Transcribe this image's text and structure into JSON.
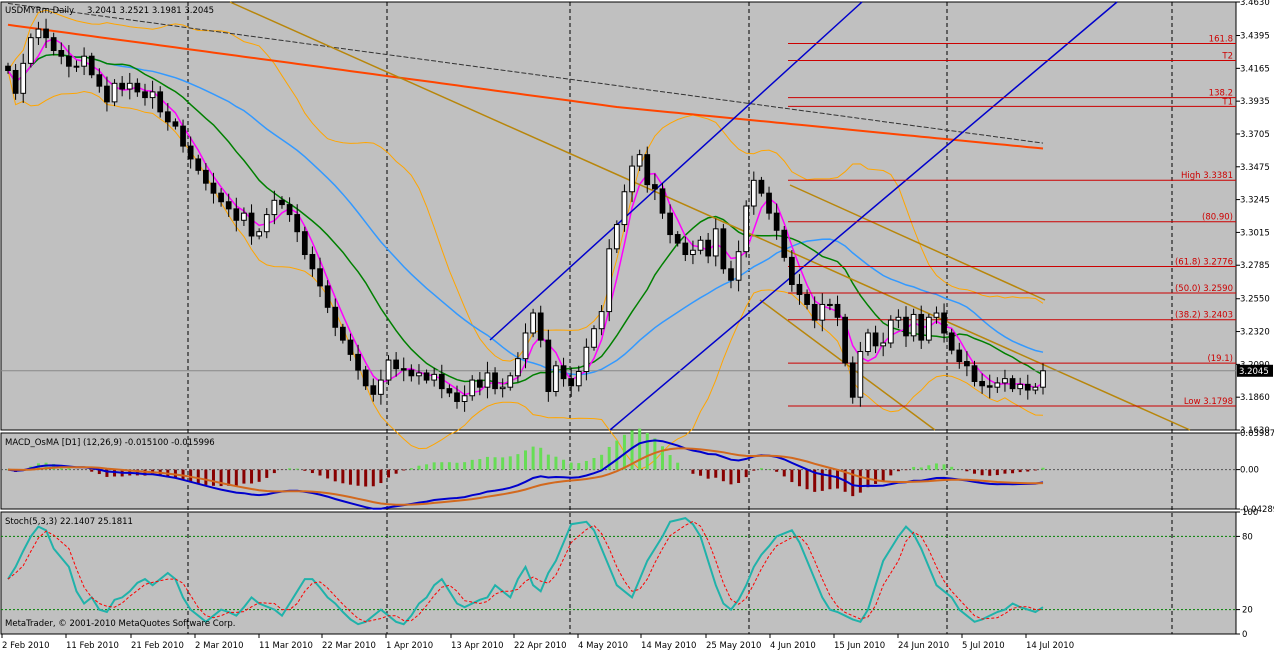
{
  "chart_data": {
    "type": "candlestick",
    "symbol_header": "USDMYRm,Daily",
    "ohlc_header": "3.2041 3.2521 3.1981 3.2045",
    "last_price_label": "3.2045",
    "main_y_ticks": [
      "3.4630",
      "3.4395",
      "3.4165",
      "3.3935",
      "3.3705",
      "3.3475",
      "3.3245",
      "3.3015",
      "3.2785",
      "3.2550",
      "3.2320",
      "3.2090",
      "3.1860",
      "3.1630"
    ],
    "ylim": [
      3.163,
      3.463
    ],
    "x_labels": [
      "2 Feb 2010",
      "11 Feb 2010",
      "21 Feb 2010",
      "2 Mar 2010",
      "11 Mar 2010",
      "22 Mar 2010",
      "1 Apr 2010",
      "13 Apr 2010",
      "22 Apr 2010",
      "4 May 2010",
      "14 May 2010",
      "25 May 2010",
      "4 Jun 2010",
      "15 Jun 2010",
      "24 Jun 2010",
      "5 Jul 2010",
      "14 Jul 2010"
    ],
    "fib_levels": [
      {
        "label": "161.8",
        "price": 3.4339
      },
      {
        "label": "T2",
        "price": 3.422
      },
      {
        "label": "138.2",
        "price": 3.396
      },
      {
        "label": "T1",
        "price": 3.3898
      },
      {
        "label": "High  3.3381",
        "price": 3.3381
      },
      {
        "label": "(80.90)",
        "price": 3.309
      },
      {
        "label": "(61.8) 3.2776",
        "price": 3.2776
      },
      {
        "label": "(50.0)  3.2590",
        "price": 3.259
      },
      {
        "label": "(38.2) 3.2403",
        "price": 3.2403
      },
      {
        "label": "(19.1)",
        "price": 3.2099
      },
      {
        "label": "Low  3.1798",
        "price": 3.1798
      }
    ],
    "closes": [
      3.415,
      3.399,
      3.42,
      3.438,
      3.444,
      3.438,
      3.429,
      3.425,
      3.418,
      3.418,
      3.425,
      3.412,
      3.404,
      3.393,
      3.406,
      3.402,
      3.406,
      3.4,
      3.396,
      3.4,
      3.386,
      3.379,
      3.376,
      3.362,
      3.353,
      3.345,
      3.336,
      3.329,
      3.323,
      3.318,
      3.31,
      3.315,
      3.299,
      3.302,
      3.314,
      3.324,
      3.321,
      3.314,
      3.302,
      3.286,
      3.276,
      3.264,
      3.249,
      3.235,
      3.226,
      3.216,
      3.205,
      3.194,
      3.188,
      3.198,
      3.212,
      3.206,
      3.205,
      3.201,
      3.203,
      3.198,
      3.202,
      3.192,
      3.189,
      3.183,
      3.187,
      3.198,
      3.193,
      3.203,
      3.192,
      3.193,
      3.201,
      3.213,
      3.231,
      3.245,
      3.226,
      3.19,
      3.208,
      3.199,
      3.194,
      3.204,
      3.221,
      3.234,
      3.246,
      3.29,
      3.307,
      3.33,
      3.348,
      3.356,
      3.335,
      3.332,
      3.315,
      3.3,
      3.294,
      3.286,
      3.289,
      3.296,
      3.285,
      3.304,
      3.276,
      3.268,
      3.288,
      3.32,
      3.338,
      3.329,
      3.315,
      3.303,
      3.284,
      3.265,
      3.258,
      3.251,
      3.24,
      3.251,
      3.251,
      3.242,
      3.21,
      3.186,
      3.218,
      3.231,
      3.222,
      3.224,
      3.24,
      3.242,
      3.229,
      3.244,
      3.226,
      3.242,
      3.245,
      3.231,
      3.219,
      3.211,
      3.208,
      3.197,
      3.194,
      3.193,
      3.196,
      3.199,
      3.192,
      3.195,
      3.191,
      3.193,
      3.2045
    ],
    "bollinger_upper_end": 3.2521,
    "macd": {
      "header": "MACD_OsMA [D1] (12,26,9) -0.015100 -0.015996",
      "y_ticks": [
        "0.039876",
        "0.00",
        "-0.042895"
      ],
      "ylim": [
        -0.042895,
        0.039876
      ]
    },
    "stoch": {
      "header": "Stoch(5,3,3) 22.1407 25.1811",
      "y_ticks": [
        "100",
        "80",
        "20",
        "0"
      ],
      "ylim": [
        0,
        100
      ],
      "k": [
        45,
        55,
        68,
        80,
        88,
        85,
        70,
        55,
        35,
        25,
        30,
        20,
        18,
        28,
        30,
        35,
        42,
        45,
        40,
        50,
        45,
        30,
        20,
        15,
        10,
        15,
        20,
        18,
        15,
        22,
        30,
        25,
        20,
        15,
        25,
        35,
        45,
        45,
        38,
        30,
        25,
        18,
        12,
        8,
        10,
        20,
        15,
        10,
        8,
        15,
        25,
        30,
        40,
        45,
        35,
        25,
        22,
        28,
        30,
        40,
        35,
        30,
        45,
        55,
        40,
        35,
        50,
        60,
        75,
        90,
        92,
        85,
        70,
        55,
        40,
        35,
        30,
        45,
        60,
        70,
        80,
        92,
        95,
        90,
        80,
        60,
        40,
        25,
        20,
        28,
        40,
        55,
        65,
        72,
        80,
        85,
        75,
        60,
        45,
        30,
        20,
        18,
        15,
        12,
        10,
        20,
        40,
        60,
        80,
        88,
        82,
        70,
        55,
        40,
        35,
        30,
        20,
        15,
        10,
        12,
        18,
        20,
        25,
        22,
        20,
        18,
        22
      ]
    },
    "copyright": "MetaTrader, © 2001-2010 MetaQuotes Software Corp."
  },
  "colors": {
    "background": "#c0c0c0",
    "bull": "#ffffff",
    "bear": "#000000",
    "ma_fast": "#ff00ff",
    "ma_mid": "#008000",
    "ma_slow": "#3399ff",
    "ma_long": "#ff4500",
    "ma_vlong": "#333333",
    "bands": "#ffa500",
    "channel": "#0000cc",
    "trendline": "#b8860b",
    "fib": "#cc0000",
    "macd_line": "#0000cc",
    "signal_line": "#d2691e",
    "hist_up": "#66dd55",
    "hist_down": "#880000",
    "stoch_k": "#20b2aa",
    "stoch_d": "#ff0000"
  }
}
